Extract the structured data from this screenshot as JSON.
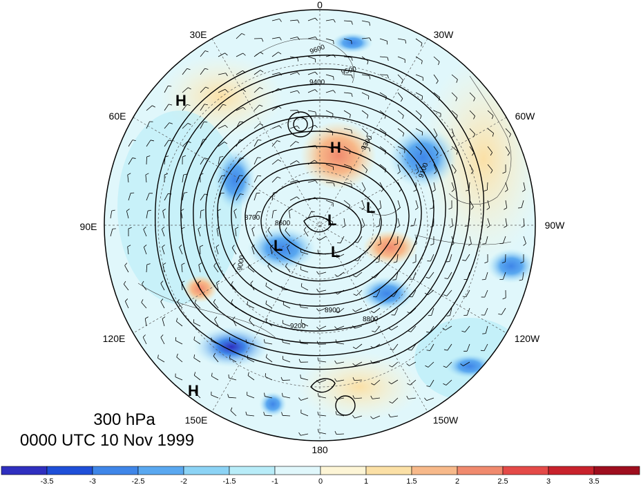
{
  "title": {
    "level": "300 hPa",
    "time": "0000 UTC 10 Nov 1999"
  },
  "map": {
    "projection": "north-polar-stereographic",
    "meridian_labels": [
      "0",
      "30W",
      "60W",
      "90W",
      "120W",
      "150W",
      "180",
      "150E",
      "120E",
      "90E",
      "60E",
      "30E"
    ],
    "contour_labels": [
      "9600",
      "9500",
      "9400",
      "9300",
      "9200",
      "9100",
      "9000",
      "8900",
      "8800",
      "8700",
      "8600"
    ],
    "pressure_centers": [
      {
        "type": "H",
        "where": "Europe/Siberia"
      },
      {
        "type": "H",
        "where": "Greenland Sea"
      },
      {
        "type": "H",
        "where": "North Pacific"
      },
      {
        "type": "L",
        "where": "Siberia"
      },
      {
        "type": "L",
        "where": "Pole"
      },
      {
        "type": "L",
        "where": "Pole"
      },
      {
        "type": "L",
        "where": "Canadian Arctic"
      }
    ]
  },
  "colorbar": {
    "ticks": [
      "-3.5",
      "-3",
      "-2.5",
      "-2",
      "-1.5",
      "-1",
      "0",
      "1",
      "1.5",
      "2",
      "2.5",
      "3",
      "3.5"
    ],
    "colors": [
      "#2f2fbf",
      "#1f4fd8",
      "#3f86e8",
      "#5aa8f0",
      "#8cd3f5",
      "#b8ecf8",
      "#e0f7fb",
      "#fdf5d6",
      "#fbe0a6",
      "#f7b98a",
      "#f08a6e",
      "#e44a48",
      "#c8222c",
      "#9e0e1e"
    ]
  }
}
